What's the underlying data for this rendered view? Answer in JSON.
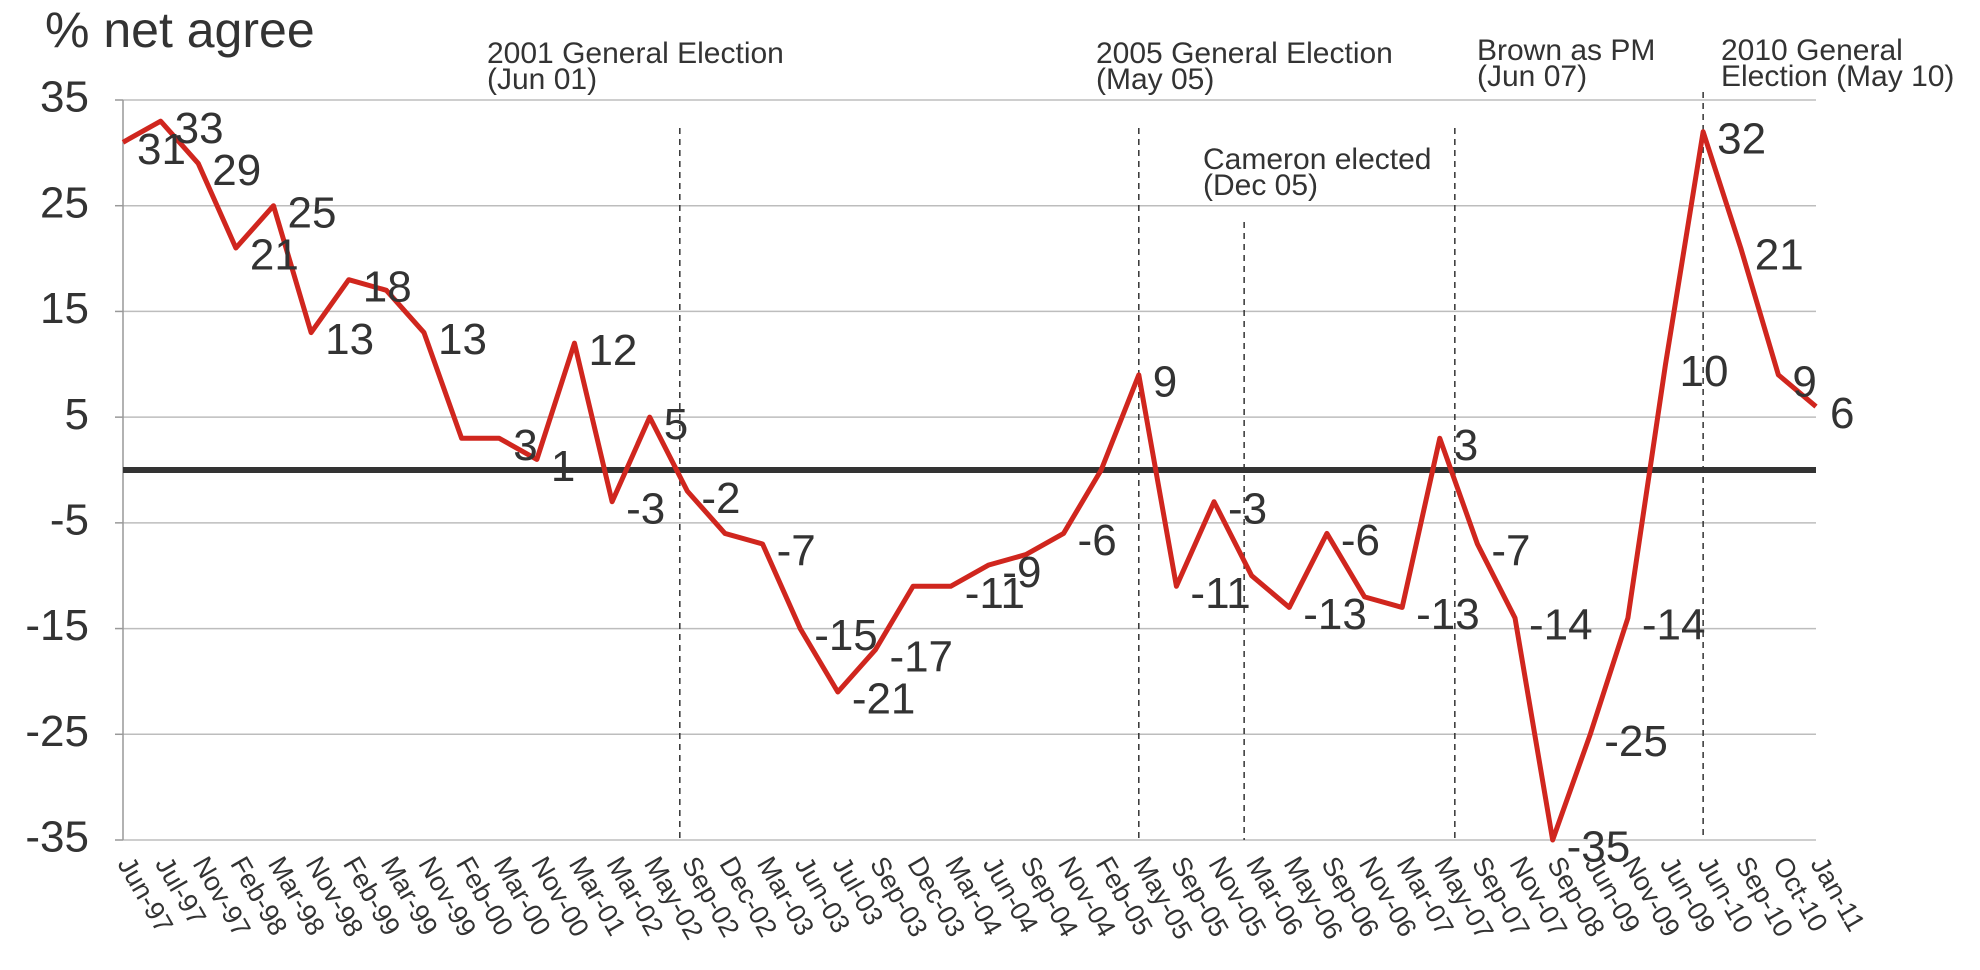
{
  "chart_data": {
    "type": "line",
    "title": "% net agree",
    "categories": [
      "Jun-97",
      "Jul-97",
      "Nov-97",
      "Feb-98",
      "Mar-98",
      "Nov-98",
      "Feb-99",
      "Mar-99",
      "Nov-99",
      "Feb-00",
      "Mar-00",
      "Nov-00",
      "Mar-01",
      "Mar-02",
      "May-02",
      "Sep-02",
      "Dec-02",
      "Mar-03",
      "Jun-03",
      "Jul-03",
      "Sep-03",
      "Dec-03",
      "Mar-04",
      "Jun-04",
      "Sep-04",
      "Nov-04",
      "Feb-05",
      "May-05",
      "Sep-05",
      "Nov-05",
      "Mar-06",
      "May-06",
      "Sep-06",
      "Nov-06",
      "Mar-07",
      "May-07",
      "Sep-07",
      "Nov-07",
      "Sep-08",
      "Jun-09",
      "Nov-09",
      "Jun-09",
      "Jun-10",
      "Sep-10",
      "Oct-10",
      "Jan-11"
    ],
    "values": [
      31,
      33,
      29,
      21,
      25,
      13,
      18,
      17,
      13,
      3,
      3,
      1,
      12,
      -3,
      5,
      -2,
      -6,
      -7,
      -15,
      -21,
      -17,
      -11,
      -11,
      -9,
      -8,
      -6,
      0,
      9,
      -11,
      -3,
      -10,
      -13,
      -6,
      -12,
      -13,
      3,
      -7,
      -14,
      -35,
      -25,
      -14,
      10,
      32,
      21,
      9,
      6
    ],
    "value_labels": [
      "31",
      "33",
      "29",
      "21",
      "25",
      "13",
      "18",
      null,
      "13",
      null,
      "3",
      "1",
      "12",
      "-3",
      "5",
      "-2",
      null,
      "-7",
      "-15",
      "-21",
      "-17",
      null,
      "-11",
      "-9",
      null,
      "-6",
      null,
      "9",
      "-11",
      "-3",
      null,
      "-13",
      "-6",
      null,
      "-13",
      "3",
      "-7",
      "-14",
      "-35",
      "-25",
      "-14",
      "10",
      "32",
      "21",
      "9",
      "6"
    ],
    "color": "#d0261e",
    "ylim": [
      -35,
      35
    ],
    "yticks": [
      -35,
      -25,
      -15,
      -5,
      5,
      15,
      25,
      35
    ],
    "grid": true,
    "annotations": [
      {
        "lines": [
          "2001 General Election",
          "(Jun 01)"
        ],
        "category": 14
      },
      {
        "lines": [
          "2005 General Election",
          "(May 05)"
        ],
        "category": 27
      },
      {
        "lines": [
          "Cameron elected",
          "(Dec 05)"
        ],
        "category": 29
      },
      {
        "lines": [
          "Brown as PM",
          "(Jun 07)"
        ],
        "category": 35
      },
      {
        "lines": [
          "2010 General",
          "Election (May 10)"
        ],
        "category": 42
      }
    ]
  }
}
